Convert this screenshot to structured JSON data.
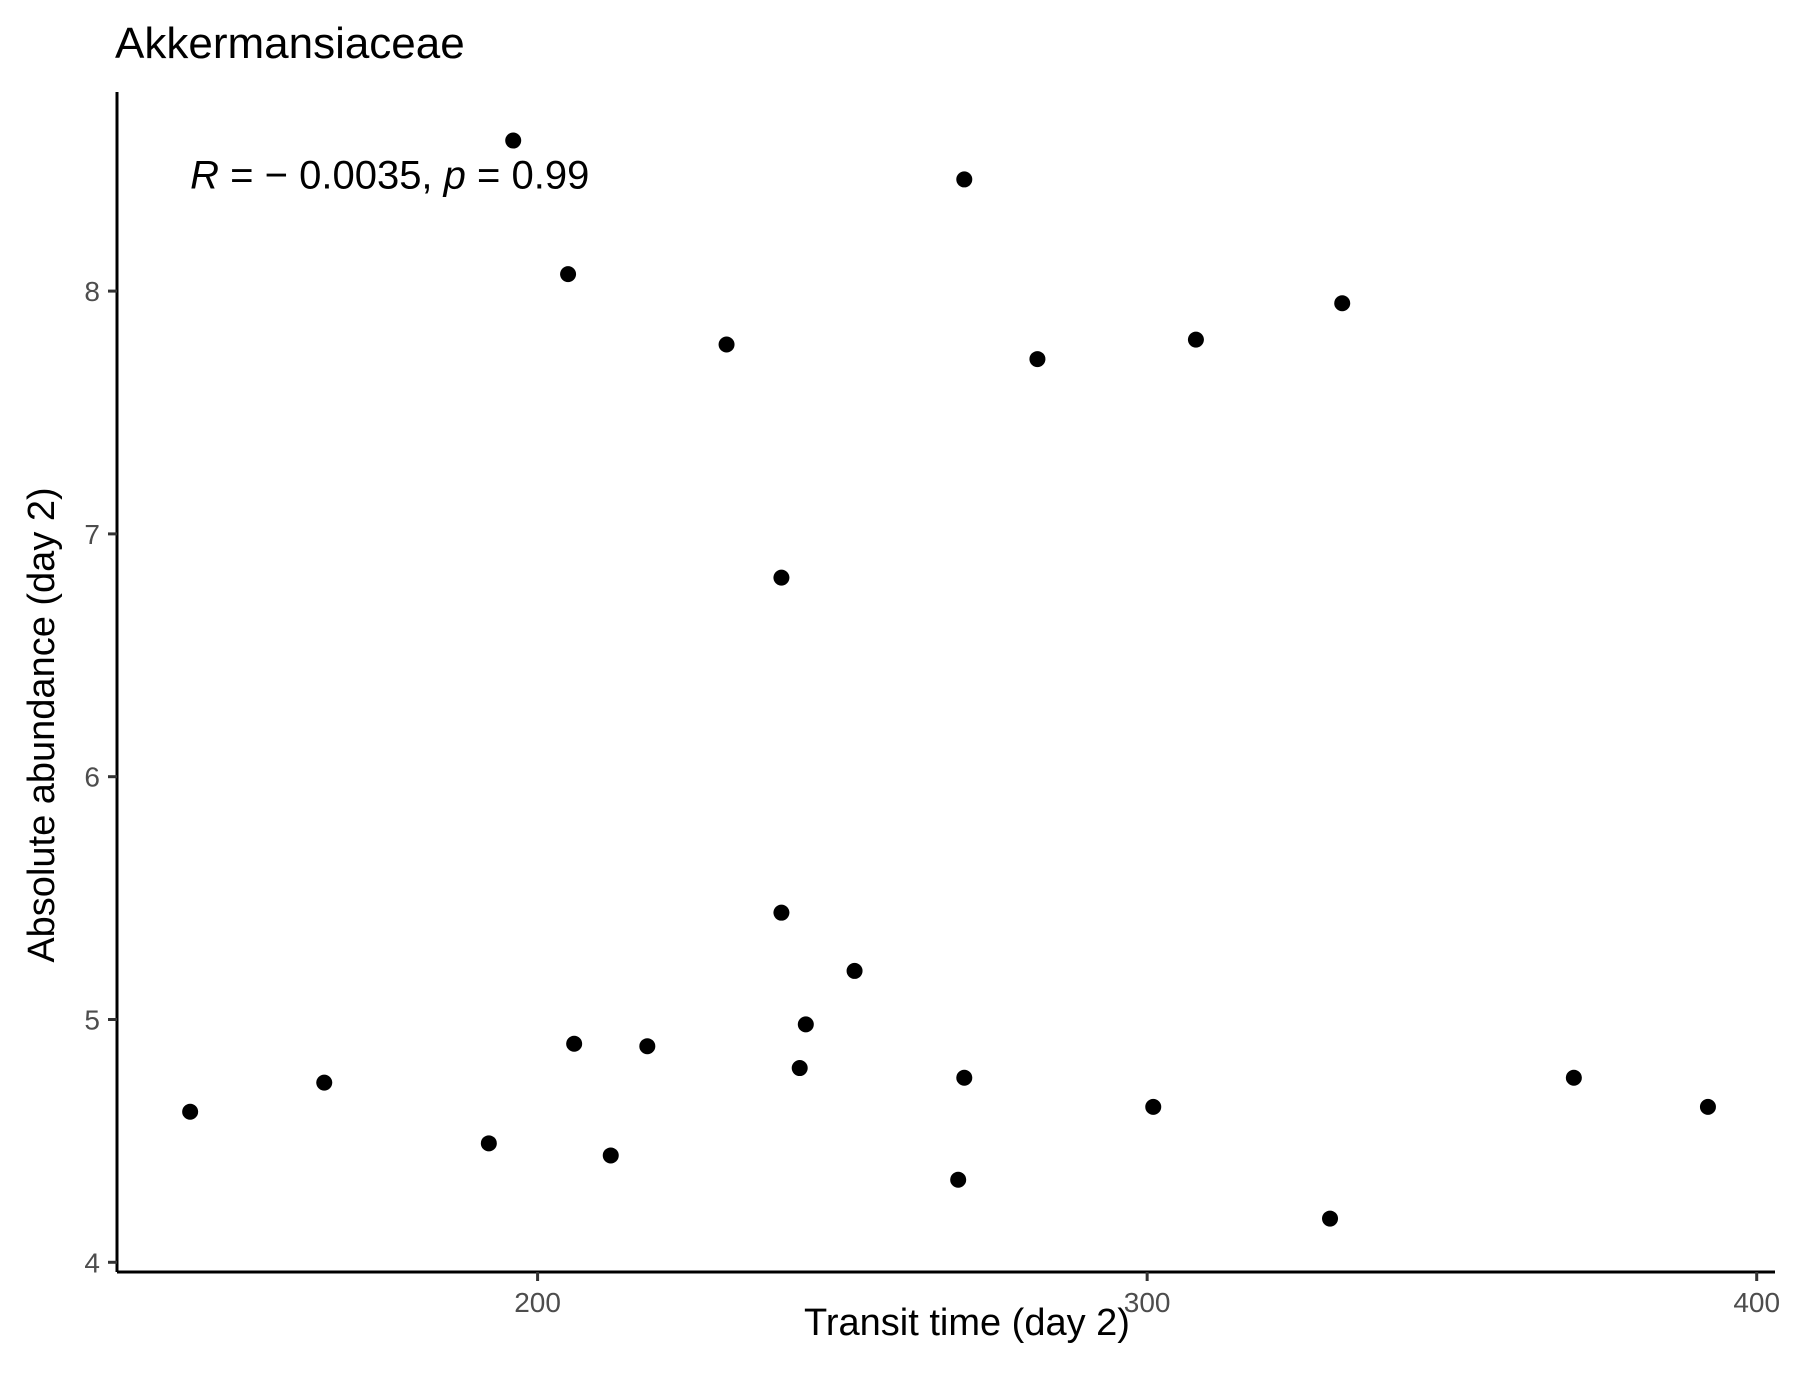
{
  "chart_data": {
    "type": "scatter",
    "title": "Akkermansiaceae",
    "xlabel": "Transit time (day 2)",
    "ylabel": "Absolute abundance (day 2)",
    "xlim": [
      131,
      403
    ],
    "ylim": [
      3.96,
      8.82
    ],
    "xticks": [
      200,
      300,
      400
    ],
    "yticks": [
      4,
      5,
      6,
      7,
      8
    ],
    "grid": false,
    "legend": "none",
    "point_color": "#000000",
    "annotation": {
      "r_label": "R",
      "r_text": " = − 0.0035, ",
      "p_label": "p",
      "p_text": " = 0.99",
      "x": 143,
      "y": 8.48
    },
    "points": [
      {
        "x": 143.0,
        "y": 4.62
      },
      {
        "x": 165.0,
        "y": 4.74
      },
      {
        "x": 192.0,
        "y": 4.49
      },
      {
        "x": 196.0,
        "y": 8.62
      },
      {
        "x": 205.0,
        "y": 8.07
      },
      {
        "x": 206.0,
        "y": 4.9
      },
      {
        "x": 212.0,
        "y": 4.44
      },
      {
        "x": 218.0,
        "y": 4.89
      },
      {
        "x": 231.0,
        "y": 7.78
      },
      {
        "x": 240.0,
        "y": 6.82
      },
      {
        "x": 240.0,
        "y": 5.44
      },
      {
        "x": 243.0,
        "y": 4.8
      },
      {
        "x": 244.0,
        "y": 4.98
      },
      {
        "x": 252.0,
        "y": 5.2
      },
      {
        "x": 269.0,
        "y": 4.34
      },
      {
        "x": 270.0,
        "y": 8.46
      },
      {
        "x": 270.0,
        "y": 4.76
      },
      {
        "x": 282.0,
        "y": 7.72
      },
      {
        "x": 301.0,
        "y": 4.64
      },
      {
        "x": 308.0,
        "y": 7.8
      },
      {
        "x": 330.0,
        "y": 4.18
      },
      {
        "x": 332.0,
        "y": 7.95
      },
      {
        "x": 370.0,
        "y": 4.76
      },
      {
        "x": 392.0,
        "y": 4.64
      }
    ]
  }
}
